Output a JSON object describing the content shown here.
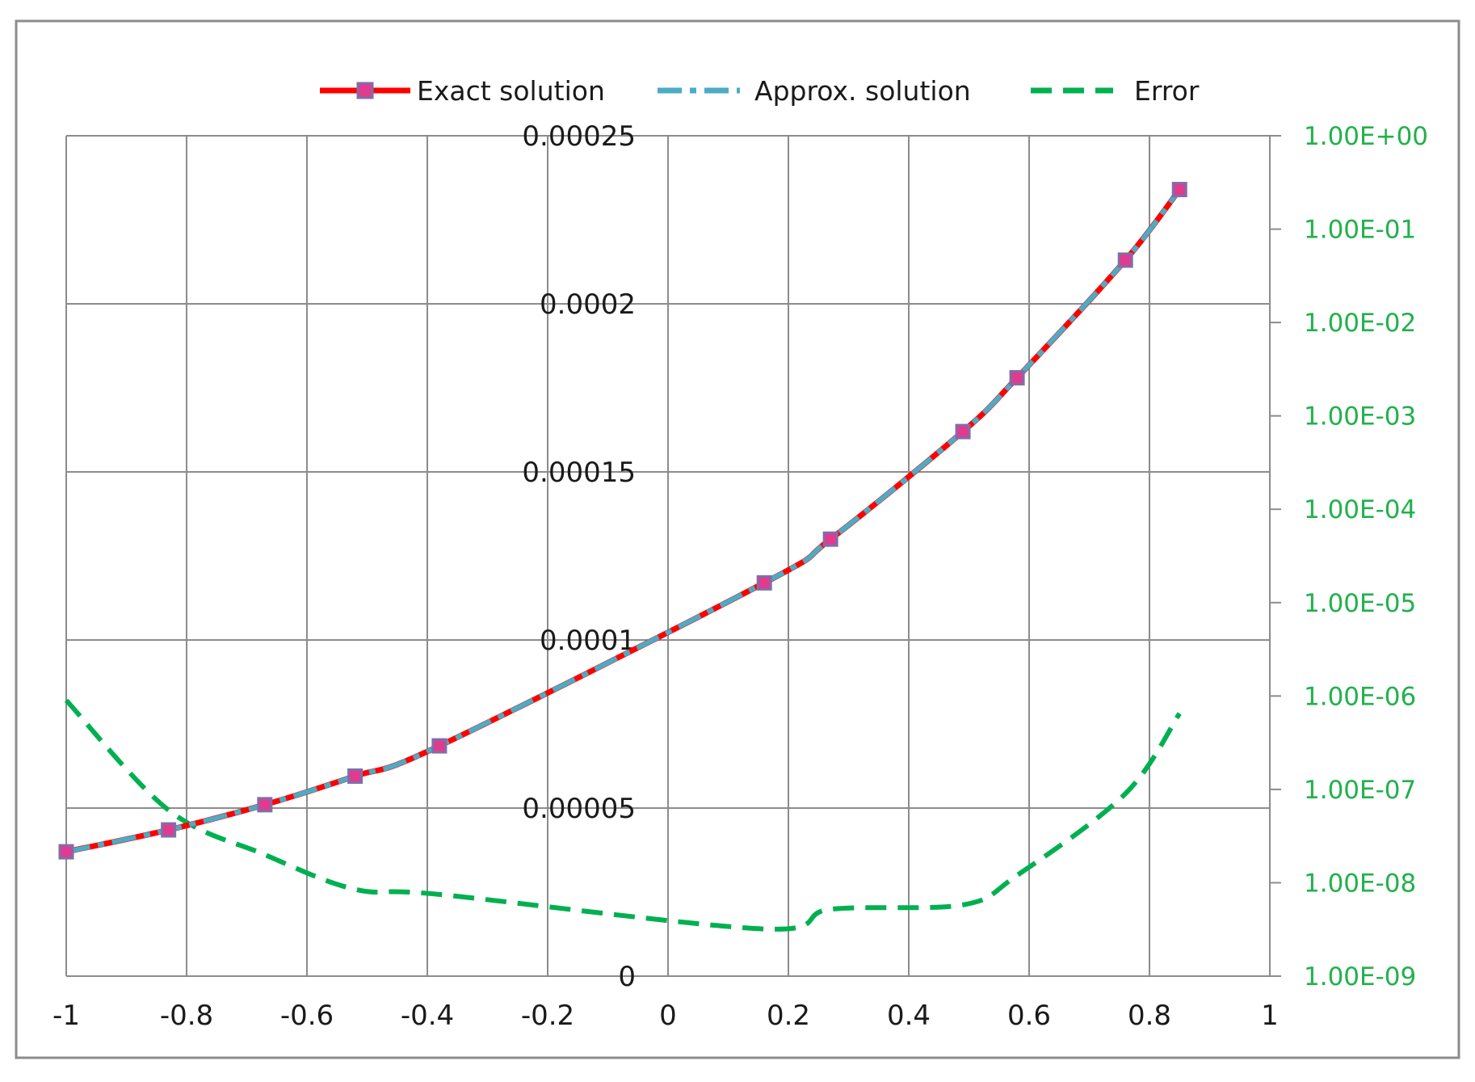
{
  "chart_data": {
    "type": "line",
    "title": "",
    "xlabel": "",
    "ylabel": "",
    "xlim": [
      -1,
      1
    ],
    "ylim": [
      0,
      0.00025
    ],
    "y2lim": [
      1e-09,
      1
    ],
    "y2_scale": "log",
    "grid": true,
    "legend_position": "top",
    "x_ticks": [
      "-1",
      "-0.8",
      "-0.6",
      "-0.4",
      "-0.2",
      "0",
      "0.2",
      "0.4",
      "0.6",
      "0.8",
      "1"
    ],
    "y_ticks": [
      "0",
      "0.00005",
      "0.0001",
      "0.00015",
      "0.0002",
      "0.00025"
    ],
    "y2_ticks": [
      "1.00E-09",
      "1.00E-08",
      "1.00E-07",
      "1.00E-06",
      "1.00E-05",
      "1.00E-04",
      "1.00E-03",
      "1.00E-02",
      "1.00E-01",
      "1.00E+00"
    ],
    "x": [
      -1.0,
      -0.83,
      -0.67,
      -0.52,
      -0.38,
      0.16,
      0.27,
      0.49,
      0.58,
      0.76,
      0.85
    ],
    "series": [
      {
        "name": "Exact solution",
        "axis": "left",
        "color": "#ff0000",
        "marker": "square",
        "values": [
          3.7e-05,
          4.35e-05,
          5.1e-05,
          5.95e-05,
          6.85e-05,
          0.000117,
          0.00013,
          0.000162,
          0.000178,
          0.000213,
          0.000234
        ]
      },
      {
        "name": "Approx. solution",
        "axis": "left",
        "color": "#4bacc6",
        "values": [
          3.7e-05,
          4.35e-05,
          5.1e-05,
          5.95e-05,
          6.85e-05,
          0.000117,
          0.00013,
          0.000162,
          0.000178,
          0.000213,
          0.000234
        ]
      },
      {
        "name": "Error",
        "axis": "right",
        "color": "#00b050",
        "x": [
          -1.0,
          -0.83,
          -0.67,
          -0.52,
          -0.38,
          0.16,
          0.27,
          0.49,
          0.58,
          0.76,
          0.85
        ],
        "values": [
          9e-07,
          6e-08,
          2e-08,
          8.5e-09,
          7.5e-09,
          3.2e-09,
          5.2e-09,
          5.8e-09,
          1.2e-08,
          9e-08,
          6.5e-07
        ]
      }
    ]
  }
}
